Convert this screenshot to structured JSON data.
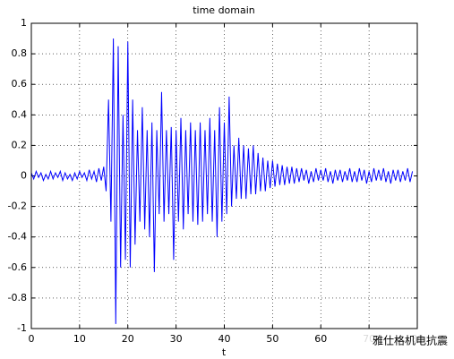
{
  "chart_data": {
    "type": "line",
    "title": "time domain",
    "xlabel": "t",
    "watermark": "雅仕格机电抗震",
    "color": "#0000ff",
    "grid": true,
    "xlim": [
      0,
      80
    ],
    "xticks": [
      0,
      10,
      20,
      30,
      40,
      50,
      60,
      70,
      80
    ],
    "ylim": [
      -1,
      1
    ],
    "yticks": [
      -1,
      -0.8,
      -0.6,
      -0.4,
      -0.2,
      0,
      0.2,
      0.4,
      0.6,
      0.8,
      1
    ],
    "x": [
      0,
      0.5,
      1,
      1.5,
      2,
      2.5,
      3,
      3.5,
      4,
      4.5,
      5,
      5.5,
      6,
      6.5,
      7,
      7.5,
      8,
      8.5,
      9,
      9.5,
      10,
      10.5,
      11,
      11.5,
      12,
      12.5,
      13,
      13.5,
      14,
      14.5,
      15,
      15.5,
      16,
      16.5,
      17,
      17.5,
      18,
      18.5,
      19,
      19.5,
      20,
      20.5,
      21,
      21.5,
      22,
      22.5,
      23,
      23.5,
      24,
      24.5,
      25,
      25.5,
      26,
      26.5,
      27,
      27.5,
      28,
      28.5,
      29,
      29.5,
      30,
      30.5,
      31,
      31.5,
      32,
      32.5,
      33,
      33.5,
      34,
      34.5,
      35,
      35.5,
      36,
      36.5,
      37,
      37.5,
      38,
      38.5,
      39,
      39.5,
      40,
      40.5,
      41,
      41.5,
      42,
      42.5,
      43,
      43.5,
      44,
      44.5,
      45,
      45.5,
      46,
      46.5,
      47,
      47.5,
      48,
      48.5,
      49,
      49.5,
      50,
      50.5,
      51,
      51.5,
      52,
      52.5,
      53,
      53.5,
      54,
      54.5,
      55,
      55.5,
      56,
      56.5,
      57,
      57.5,
      58,
      58.5,
      59,
      59.5,
      60,
      60.5,
      61,
      61.5,
      62,
      62.5,
      63,
      63.5,
      64,
      64.5,
      65,
      65.5,
      66,
      66.5,
      67,
      67.5,
      68,
      68.5,
      69,
      69.5,
      70,
      70.5,
      71,
      71.5,
      72,
      72.5,
      73,
      73.5,
      74,
      74.5,
      75,
      75.5,
      76,
      76.5,
      77,
      77.5,
      78,
      78.5,
      79
    ],
    "values": [
      0.02,
      -0.02,
      0.03,
      -0.01,
      0.02,
      -0.03,
      0.01,
      -0.02,
      0.03,
      -0.02,
      0.02,
      -0.01,
      0.03,
      -0.03,
      0.02,
      -0.02,
      0.01,
      -0.03,
      0.02,
      -0.02,
      0.03,
      -0.01,
      0.02,
      -0.03,
      0.04,
      -0.02,
      0.03,
      -0.04,
      0.05,
      -0.03,
      0.06,
      -0.1,
      0.5,
      -0.3,
      0.9,
      -0.97,
      0.85,
      -0.6,
      0.4,
      -0.55,
      0.88,
      -0.6,
      0.5,
      -0.45,
      0.3,
      -0.3,
      0.45,
      -0.35,
      0.3,
      -0.4,
      0.35,
      -0.63,
      0.3,
      -0.25,
      0.55,
      -0.3,
      0.3,
      -0.25,
      0.32,
      -0.55,
      0.3,
      -0.3,
      0.38,
      -0.35,
      0.3,
      -0.25,
      0.35,
      -0.3,
      0.3,
      -0.32,
      0.35,
      -0.3,
      0.3,
      -0.25,
      0.38,
      -0.3,
      0.3,
      -0.4,
      0.45,
      -0.3,
      0.35,
      -0.25,
      0.52,
      -0.2,
      0.2,
      -0.15,
      0.25,
      -0.15,
      0.2,
      -0.15,
      0.18,
      -0.12,
      0.2,
      -0.12,
      0.15,
      -0.1,
      0.12,
      -0.1,
      0.1,
      -0.08,
      0.1,
      -0.07,
      0.08,
      -0.06,
      0.07,
      -0.06,
      0.06,
      -0.05,
      0.06,
      -0.05,
      0.05,
      -0.04,
      0.05,
      -0.03,
      0.04,
      -0.05,
      0.03,
      -0.04,
      0.05,
      -0.03,
      0.04,
      -0.03,
      0.05,
      -0.04,
      0.03,
      -0.05,
      0.04,
      -0.03,
      0.04,
      -0.04,
      0.03,
      -0.03,
      0.05,
      -0.04,
      0.03,
      -0.04,
      0.05,
      -0.03,
      0.04,
      -0.05,
      0.03,
      -0.04,
      0.05,
      -0.03,
      0.04,
      -0.03,
      0.05,
      -0.04,
      0.03,
      -0.05,
      0.04,
      -0.03,
      0.04,
      -0.04,
      0.03,
      -0.03,
      0.05,
      -0.04,
      0.03
    ]
  }
}
